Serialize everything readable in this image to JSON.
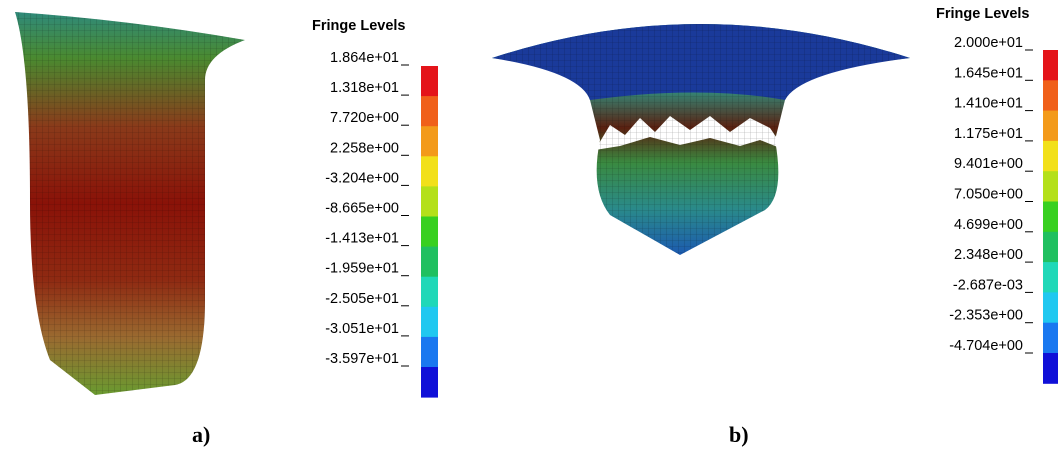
{
  "panels": [
    {
      "label": "a)",
      "legend_title": "Fringe Levels",
      "levels": [
        "1.864e+01",
        "1.318e+01",
        "7.720e+00",
        "2.258e+00",
        "-3.204e+00",
        "-8.665e+00",
        "-1.413e+01",
        "-1.959e+01",
        "-2.505e+01",
        "-3.051e+01",
        "-3.597e+01"
      ]
    },
    {
      "label": "b)",
      "legend_title": "Fringe Levels",
      "levels": [
        "2.000e+01",
        "1.645e+01",
        "1.410e+01",
        "1.175e+01",
        "9.401e+00",
        "7.050e+00",
        "4.699e+00",
        "2.348e+00",
        "-2.687e-03",
        "-2.353e+00",
        "-4.704e+00"
      ]
    }
  ]
}
